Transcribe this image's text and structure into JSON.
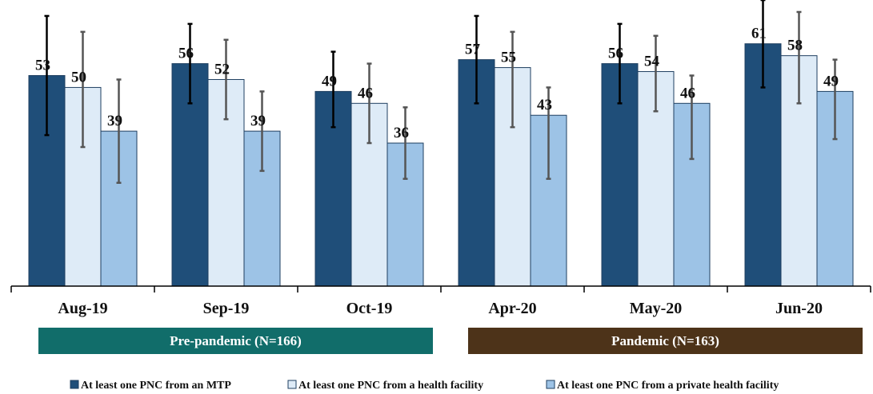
{
  "chart_data": {
    "type": "bar",
    "categories": [
      "Aug-19",
      "Sep-19",
      "Oct-19",
      "Apr-20",
      "May-20",
      "Jun-20"
    ],
    "ylim": [
      0,
      70
    ],
    "grid": false,
    "legend_position": "bottom",
    "series": [
      {
        "name": "At least one PNC  from an MTP",
        "color": "#1f4e79",
        "values": [
          53,
          56,
          49,
          57,
          56,
          61
        ],
        "error_low": [
          38,
          46,
          40,
          46,
          46,
          50
        ],
        "error_high": [
          68,
          66,
          59,
          68,
          66,
          72
        ]
      },
      {
        "name": "At least one PNC from a health facility",
        "color": "#deebf7",
        "values": [
          50,
          52,
          46,
          55,
          54,
          58
        ],
        "error_low": [
          35,
          42,
          36,
          40,
          44,
          46
        ],
        "error_high": [
          64,
          62,
          56,
          64,
          63,
          69
        ]
      },
      {
        "name": "At least one PNC from a private health facility",
        "color": "#9dc3e6",
        "values": [
          39,
          39,
          36,
          43,
          46,
          49
        ],
        "error_low": [
          26,
          29,
          27,
          27,
          32,
          37
        ],
        "error_high": [
          52,
          49,
          45,
          50,
          53,
          57
        ]
      }
    ],
    "periods": [
      {
        "label": "Pre-pandemic (N=166)",
        "color": "#116d6a",
        "categories": [
          "Aug-19",
          "Sep-19",
          "Oct-19"
        ]
      },
      {
        "label": "Pandemic (N=163)",
        "color": "#4d3319",
        "categories": [
          "Apr-20",
          "May-20",
          "Jun-20"
        ]
      }
    ]
  }
}
